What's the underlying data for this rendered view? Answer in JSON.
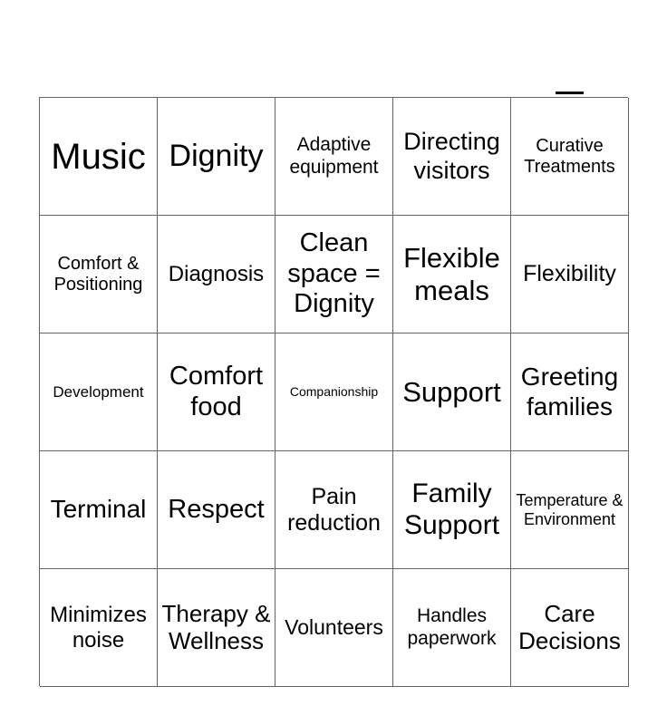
{
  "border_color": "#e8283c",
  "cells": [
    {
      "text": "Music",
      "size": 40
    },
    {
      "text": "Dignity",
      "size": 34
    },
    {
      "text": "Adaptive equipment",
      "size": 21
    },
    {
      "text": "Directing visitors",
      "size": 27
    },
    {
      "text": "Curative Treatments",
      "size": 20
    },
    {
      "text": "Comfort & Positioning",
      "size": 20
    },
    {
      "text": "Diagnosis",
      "size": 24
    },
    {
      "text": "Clean space = Dignity",
      "size": 29
    },
    {
      "text": "Flexible meals",
      "size": 31
    },
    {
      "text": "Flexibility",
      "size": 25
    },
    {
      "text": "Development",
      "size": 17
    },
    {
      "text": "Comfort food",
      "size": 29
    },
    {
      "text": "Companionship",
      "size": 14
    },
    {
      "text": "Support",
      "size": 31
    },
    {
      "text": "Greeting families",
      "size": 28
    },
    {
      "text": "Terminal",
      "size": 28
    },
    {
      "text": "Respect",
      "size": 29
    },
    {
      "text": "Pain reduction",
      "size": 25
    },
    {
      "text": "Family Support",
      "size": 30
    },
    {
      "text": "Temperature & Environment",
      "size": 18
    },
    {
      "text": "Minimizes noise",
      "size": 24
    },
    {
      "text": "Therapy & Wellness",
      "size": 26
    },
    {
      "text": "Volunteers",
      "size": 23
    },
    {
      "text": "Handles paperwork",
      "size": 21
    },
    {
      "text": "Care Decisions",
      "size": 26
    }
  ]
}
